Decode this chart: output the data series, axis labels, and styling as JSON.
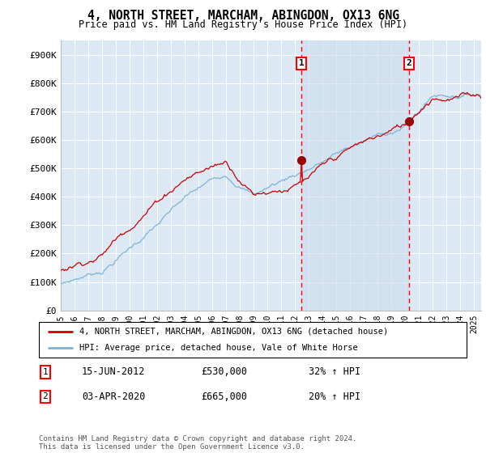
{
  "title": "4, NORTH STREET, MARCHAM, ABINGDON, OX13 6NG",
  "subtitle": "Price paid vs. HM Land Registry's House Price Index (HPI)",
  "legend_line1": "4, NORTH STREET, MARCHAM, ABINGDON, OX13 6NG (detached house)",
  "legend_line2": "HPI: Average price, detached house, Vale of White Horse",
  "footer": "Contains HM Land Registry data © Crown copyright and database right 2024.\nThis data is licensed under the Open Government Licence v3.0.",
  "sale1_date": "15-JUN-2012",
  "sale1_price": 530000,
  "sale1_pricef": "£530,000",
  "sale1_label": "32% ↑ HPI",
  "sale2_date": "03-APR-2020",
  "sale2_price": 665000,
  "sale2_pricef": "£665,000",
  "sale2_label": "20% ↑ HPI",
  "sale1_year": 2012.45,
  "sale2_year": 2020.27,
  "hpi_color": "#7ab4d8",
  "price_color": "#cc0000",
  "shade_color": "#d8e8f5",
  "background_color": "#dce9f5",
  "ylim": [
    0,
    950000
  ],
  "xlim_start": 1995.0,
  "xlim_end": 2025.5,
  "yticks": [
    0,
    100000,
    200000,
    300000,
    400000,
    500000,
    600000,
    700000,
    800000,
    900000
  ],
  "ytick_labels": [
    "£0",
    "£100K",
    "£200K",
    "£300K",
    "£400K",
    "£500K",
    "£600K",
    "£700K",
    "£800K",
    "£900K"
  ]
}
